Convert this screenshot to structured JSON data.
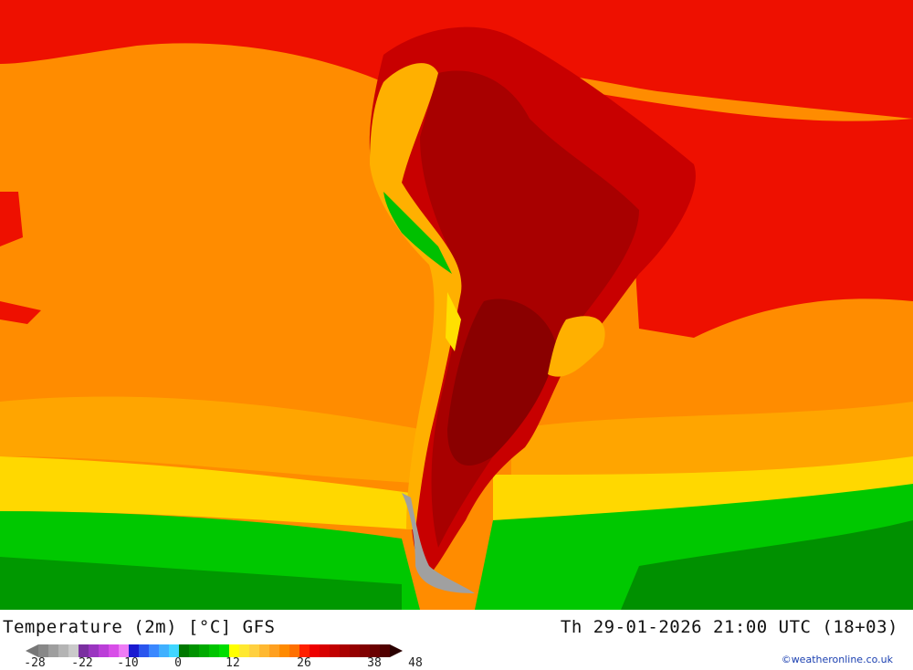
{
  "map": {
    "title": "Temperature (2m) [°C] GFS",
    "datetime": "Th 29-01-2026 21:00 UTC (18+03)",
    "credit": "©weatheronline.co.uk",
    "region": "South America",
    "colors": {
      "ocean_warm": "#ff7f00",
      "ocean_mid": "#ff9a00",
      "hot": "#ee0000",
      "very_hot": "#b80000",
      "extreme": "#900000",
      "mild": "#ffcc00",
      "yellow": "#ffff00",
      "green": "#00cc00",
      "cool_green": "#008f00",
      "land_outline": "#909090"
    }
  },
  "legend": {
    "ticks": [
      "-28",
      "-22",
      "-10",
      "0",
      "12",
      "26",
      "38",
      "48"
    ],
    "colors": [
      "#888888",
      "#9e9e9e",
      "#b4b4b4",
      "#cacaca",
      "#7a2fa0",
      "#9a35c0",
      "#bb3ed8",
      "#d84ee8",
      "#ee7cf5",
      "#1a1ad0",
      "#2a55ee",
      "#3a88ff",
      "#40b0ff",
      "#40d6ff",
      "#007800",
      "#009200",
      "#00aa00",
      "#00c400",
      "#00de00",
      "#ffff00",
      "#ffe830",
      "#ffd040",
      "#ffb830",
      "#ffa020",
      "#ff8a00",
      "#ff7000",
      "#ff2000",
      "#ee0000",
      "#d80000",
      "#c20000",
      "#aa0000",
      "#950000",
      "#800000",
      "#6a0000",
      "#520000"
    ]
  }
}
